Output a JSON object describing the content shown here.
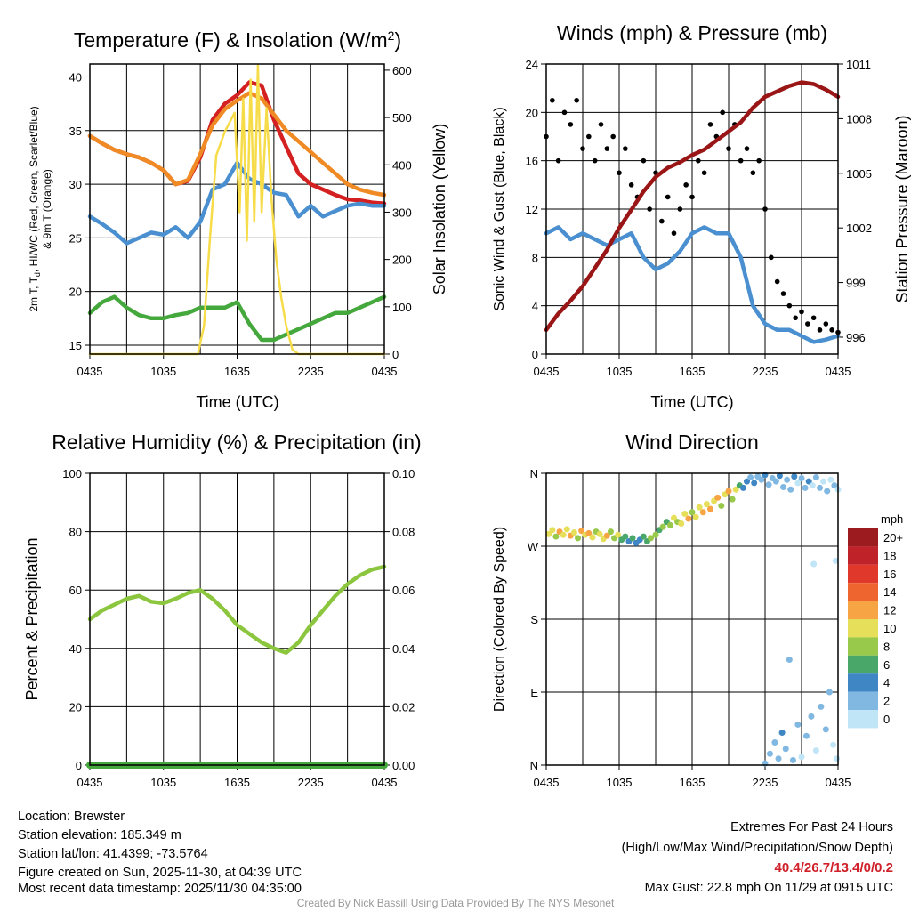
{
  "colors": {
    "red": "#d42020",
    "orange": "#f08a24",
    "blue": "#4a8fd0",
    "green": "#44a83c",
    "yellow": "#f7dc4a",
    "black": "#000000",
    "maroon": "#9a1616",
    "rh": "#8cc63f",
    "precip": "#44a83c"
  },
  "chart_data": [
    {
      "type": "line",
      "id": "temp",
      "title_main": "Temperature (F) & Insolation (W/m",
      "title_sup": "2",
      "title_end": ")",
      "xlabel": "Time (UTC)",
      "xticks": [
        "0435",
        "1035",
        "1635",
        "2235",
        "0435"
      ],
      "ylabel_parts": [
        "2m T, T",
        "d",
        ", HI/WC (Red, Green, Scarlet/Blue)"
      ],
      "ylabel_line2": "& 9m T (Orange)",
      "ylabel_right": "Solar Insolation (Yellow)",
      "ylim": [
        14.17,
        41.2
      ],
      "yticks": [
        "15",
        "20",
        "25",
        "30",
        "35",
        "40"
      ],
      "ylim_right": [
        0,
        613
      ],
      "yticks_right": [
        "0",
        "100",
        "200",
        "300",
        "400",
        "500",
        "600"
      ],
      "series": [
        {
          "name": "2m T",
          "color": "red",
          "hours": "hourly",
          "values": [
            34.5,
            33.8,
            33.2,
            32.8,
            32.5,
            32,
            31.3,
            30,
            30.3,
            32.5,
            36,
            37.5,
            38.3,
            39.5,
            39.2,
            36,
            33.5,
            31,
            30,
            29.5,
            29,
            28.6,
            28.5,
            28.3,
            28.2
          ]
        },
        {
          "name": "9m T",
          "color": "orange",
          "hours": "hourly",
          "values": [
            34.5,
            33.8,
            33.2,
            32.8,
            32.5,
            32,
            31.3,
            30,
            30.4,
            32.8,
            35.5,
            37,
            37.8,
            38.5,
            38,
            36.5,
            35,
            34,
            33,
            32,
            31,
            30,
            29.5,
            29.2,
            29
          ]
        },
        {
          "name": "HI/WC",
          "color": "blue",
          "hours": "hourly",
          "values": [
            27,
            26.3,
            25.5,
            24.5,
            25,
            25.5,
            25.3,
            26,
            25,
            26.5,
            29.5,
            30,
            32,
            30.5,
            30,
            29.2,
            29,
            27,
            28,
            27,
            27.5,
            28,
            28.2,
            28,
            28
          ]
        },
        {
          "name": "Td",
          "color": "green",
          "hours": "hourly",
          "values": [
            18,
            19,
            19.5,
            18.5,
            17.8,
            17.5,
            17.5,
            17.8,
            18,
            18.5,
            18.5,
            18.5,
            19,
            17,
            15.5,
            15.5,
            16,
            16.5,
            17,
            17.5,
            18,
            18,
            18.5,
            19,
            19.5
          ]
        },
        {
          "name": "Insolation",
          "color": "yellow",
          "axis": "right",
          "x": [
            0,
            8.8,
            9.3,
            9.8,
            10.3,
            11,
            11.8,
            12.2,
            12.5,
            12.8,
            13.1,
            13.4,
            13.7,
            14,
            14.4,
            14.8,
            15.2,
            15.6,
            16,
            16.5,
            17,
            24
          ],
          "values": [
            0,
            0,
            60,
            250,
            420,
            470,
            510,
            300,
            540,
            240,
            580,
            280,
            610,
            300,
            520,
            330,
            200,
            120,
            60,
            10,
            0,
            0
          ]
        }
      ]
    },
    {
      "type": "line",
      "id": "wind",
      "title": "Winds (mph) & Pressure (mb)",
      "xlabel": "Time (UTC)",
      "xticks": [
        "0435",
        "1035",
        "1635",
        "2235",
        "0435"
      ],
      "ylabel": "Sonic Wind & Gust (Blue, Black)",
      "ylabel_right": "Station Pressure (Maroon)",
      "ylim": [
        0,
        24
      ],
      "yticks": [
        "0",
        "4",
        "8",
        "12",
        "16",
        "20",
        "24"
      ],
      "ylim_right": [
        995.07,
        1011
      ],
      "yticks_right": [
        "996",
        "999",
        "1002",
        "1005",
        "1008",
        "1011"
      ],
      "series": [
        {
          "name": "Sonic Wind",
          "color": "blue",
          "hours": "hourly",
          "values": [
            10,
            10.5,
            9.5,
            10,
            9.5,
            9,
            9.5,
            10,
            8,
            7,
            7.5,
            8.5,
            10,
            10.5,
            10,
            10,
            8,
            4,
            2.5,
            2,
            2,
            1.5,
            1,
            1.2,
            1.5
          ]
        },
        {
          "name": "Gust",
          "color": "black",
          "type": "scatter",
          "hours": "half-hourly",
          "values": [
            18,
            21,
            16,
            20,
            19,
            21,
            17,
            18,
            16,
            19,
            17,
            18,
            15,
            17,
            14,
            13,
            16,
            12,
            15,
            11,
            13,
            10,
            12,
            14,
            13,
            16,
            15,
            19,
            18,
            20,
            17,
            19,
            16,
            17,
            15,
            16,
            12,
            8,
            6,
            5,
            4,
            3,
            3.5,
            2.5,
            3,
            2,
            2.5,
            2,
            1.8
          ]
        },
        {
          "name": "Pressure",
          "color": "maroon",
          "axis": "right",
          "hours": "hourly",
          "values": [
            996.4,
            997.3,
            998,
            998.8,
            999.8,
            1000.8,
            1002,
            1003,
            1004,
            1004.8,
            1005.3,
            1005.6,
            1006,
            1006.3,
            1006.8,
            1007.3,
            1007.8,
            1008.6,
            1009.2,
            1009.5,
            1009.8,
            1010,
            1009.9,
            1009.6,
            1009.2
          ]
        }
      ]
    },
    {
      "type": "line",
      "id": "rh",
      "title": "Relative Humidity (%) & Precipitation (in)",
      "xlabel": "",
      "xticks": [
        "0435",
        "1035",
        "1635",
        "2235",
        "0435"
      ],
      "ylabel": "Percent & Precipitation",
      "ylim": [
        0,
        100
      ],
      "yticks": [
        "0",
        "20",
        "40",
        "60",
        "80",
        "100"
      ],
      "ylim_right": [
        0,
        0.1
      ],
      "yticks_right": [
        "0.00",
        "0.02",
        "0.04",
        "0.06",
        "0.08",
        "0.10"
      ],
      "series": [
        {
          "name": "RH",
          "color": "rh",
          "hours": "hourly",
          "values": [
            50,
            53,
            55,
            57,
            58,
            56,
            55.5,
            57,
            59,
            60,
            57,
            53,
            48,
            45,
            42,
            40,
            38.5,
            42,
            48,
            53,
            58,
            62,
            65,
            67,
            68
          ]
        },
        {
          "name": "Precipitation",
          "color": "precip",
          "axis": "right",
          "hours": "hourly",
          "values": [
            0,
            0,
            0,
            0,
            0,
            0,
            0,
            0,
            0,
            0,
            0,
            0,
            0,
            0,
            0,
            0,
            0,
            0,
            0,
            0,
            0,
            0,
            0,
            0,
            0
          ]
        }
      ]
    },
    {
      "type": "scatter",
      "id": "dir",
      "title": "Wind Direction",
      "xlabel": "",
      "xticks": [
        "0435",
        "1035",
        "1635",
        "2235",
        "0435"
      ],
      "ylabel": "Direction (Colored By Speed)",
      "ylim": [
        0,
        360
      ],
      "yticks": [
        "N",
        "E",
        "S",
        "W",
        "N"
      ],
      "legend_title": "mph",
      "legend": [
        {
          "label": "20+",
          "color": "#9b1b1e"
        },
        {
          "label": "18",
          "color": "#c0222a"
        },
        {
          "label": "16",
          "color": "#e0392c"
        },
        {
          "label": "14",
          "color": "#ef6530"
        },
        {
          "label": "12",
          "color": "#f6a444"
        },
        {
          "label": "10",
          "color": "#e6df5a"
        },
        {
          "label": "8",
          "color": "#98c94a"
        },
        {
          "label": "6",
          "color": "#4aa76a"
        },
        {
          "label": "4",
          "color": "#3f86c4"
        },
        {
          "label": "2",
          "color": "#80b8e2"
        },
        {
          "label": "0",
          "color": "#bfe5f7"
        }
      ],
      "points": [
        [
          0.2,
          285,
          10
        ],
        [
          0.5,
          290,
          11
        ],
        [
          0.8,
          282,
          9
        ],
        [
          1.1,
          288,
          12
        ],
        [
          1.4,
          284,
          10
        ],
        [
          1.7,
          291,
          11
        ],
        [
          2,
          283,
          13
        ],
        [
          2.3,
          287,
          10
        ],
        [
          2.6,
          280,
          9
        ],
        [
          2.9,
          289,
          12
        ],
        [
          3.2,
          284,
          11
        ],
        [
          3.5,
          286,
          13
        ],
        [
          3.8,
          281,
          10
        ],
        [
          4.1,
          288,
          9
        ],
        [
          4.4,
          285,
          11
        ],
        [
          4.7,
          279,
          10
        ],
        [
          5,
          283,
          12
        ],
        [
          5.3,
          288,
          8
        ],
        [
          5.6,
          280,
          9
        ],
        [
          5.9,
          284,
          10
        ],
        [
          6.2,
          278,
          7
        ],
        [
          6.5,
          282,
          6
        ],
        [
          6.8,
          276,
          5
        ],
        [
          7.1,
          280,
          6
        ],
        [
          7.4,
          274,
          4
        ],
        [
          7.7,
          278,
          5
        ],
        [
          8,
          282,
          7
        ],
        [
          8.3,
          276,
          6
        ],
        [
          8.6,
          280,
          8
        ],
        [
          9,
          284,
          9
        ],
        [
          9.3,
          290,
          7
        ],
        [
          9.6,
          294,
          8
        ],
        [
          9.9,
          300,
          6
        ],
        [
          10.2,
          296,
          9
        ],
        [
          10.5,
          305,
          10
        ],
        [
          10.8,
          300,
          8
        ],
        [
          11.1,
          298,
          11
        ],
        [
          11.4,
          310,
          10
        ],
        [
          11.7,
          304,
          12
        ],
        [
          12,
          312,
          9
        ],
        [
          12.3,
          306,
          11
        ],
        [
          12.6,
          318,
          10
        ],
        [
          12.9,
          312,
          13
        ],
        [
          13.2,
          322,
          11
        ],
        [
          13.5,
          316,
          12
        ],
        [
          13.8,
          326,
          10
        ],
        [
          14.1,
          330,
          13
        ],
        [
          14.4,
          320,
          9
        ],
        [
          14.7,
          334,
          11
        ],
        [
          15,
          338,
          12
        ],
        [
          15.3,
          328,
          8
        ],
        [
          15.6,
          340,
          10
        ],
        [
          15.9,
          345,
          7
        ],
        [
          16.2,
          342,
          5
        ],
        [
          16.5,
          350,
          4
        ],
        [
          16.8,
          355,
          3
        ],
        [
          17.1,
          348,
          4
        ],
        [
          17.4,
          356,
          3
        ],
        [
          17.7,
          352,
          2
        ],
        [
          18,
          358,
          4
        ],
        [
          18.3,
          346,
          3
        ],
        [
          18.6,
          354,
          2
        ],
        [
          18.9,
          350,
          3
        ],
        [
          19.2,
          357,
          4
        ],
        [
          19.5,
          343,
          2
        ],
        [
          19.8,
          352,
          3
        ],
        [
          20.1,
          340,
          2
        ],
        [
          20.4,
          356,
          4
        ],
        [
          20.7,
          348,
          1
        ],
        [
          21,
          354,
          3
        ],
        [
          21.3,
          342,
          2
        ],
        [
          21.6,
          350,
          4
        ],
        [
          21.9,
          345,
          1
        ],
        [
          22.2,
          355,
          2
        ],
        [
          22.5,
          342,
          3
        ],
        [
          22.8,
          350,
          1
        ],
        [
          23.1,
          338,
          2
        ],
        [
          23.4,
          352,
          1
        ],
        [
          23.7,
          345,
          2
        ],
        [
          24,
          340,
          1
        ],
        [
          18,
          2,
          2
        ],
        [
          18.4,
          14,
          3
        ],
        [
          18.8,
          28,
          2
        ],
        [
          19.1,
          8,
          3
        ],
        [
          19.4,
          40,
          4
        ],
        [
          19.7,
          20,
          2
        ],
        [
          20,
          130,
          3
        ],
        [
          20.3,
          6,
          2
        ],
        [
          20.7,
          50,
          3
        ],
        [
          21,
          10,
          1
        ],
        [
          21.4,
          36,
          2
        ],
        [
          21.8,
          60,
          2
        ],
        [
          22.2,
          18,
          1
        ],
        [
          22.6,
          72,
          3
        ],
        [
          23,
          44,
          2
        ],
        [
          23.3,
          90,
          3
        ],
        [
          23.6,
          25,
          1
        ],
        [
          23.9,
          8,
          1
        ],
        [
          22,
          248,
          1
        ],
        [
          23.8,
          252,
          1
        ]
      ]
    }
  ],
  "info": {
    "location": "Location: Brewster",
    "elevation": "Station elevation: 185.349 m",
    "latlon": "Station lat/lon: 41.4399; -73.5764",
    "created": "Figure created on Sun, 2025-11-30, at 04:39 UTC",
    "recent": "Most recent data timestamp: 2025/11/30 04:35:00"
  },
  "extremes": {
    "title": "Extremes For Past 24 Hours",
    "subtitle": "(High/Low/Max Wind/Precipitation/Snow Depth)",
    "values": "40.4/26.7/13.4/0/0.2",
    "gust": "Max Gust: 22.8 mph On 11/29 at 0915 UTC"
  },
  "credit": "Created By Nick Bassill Using Data Provided By The NYS Mesonet"
}
